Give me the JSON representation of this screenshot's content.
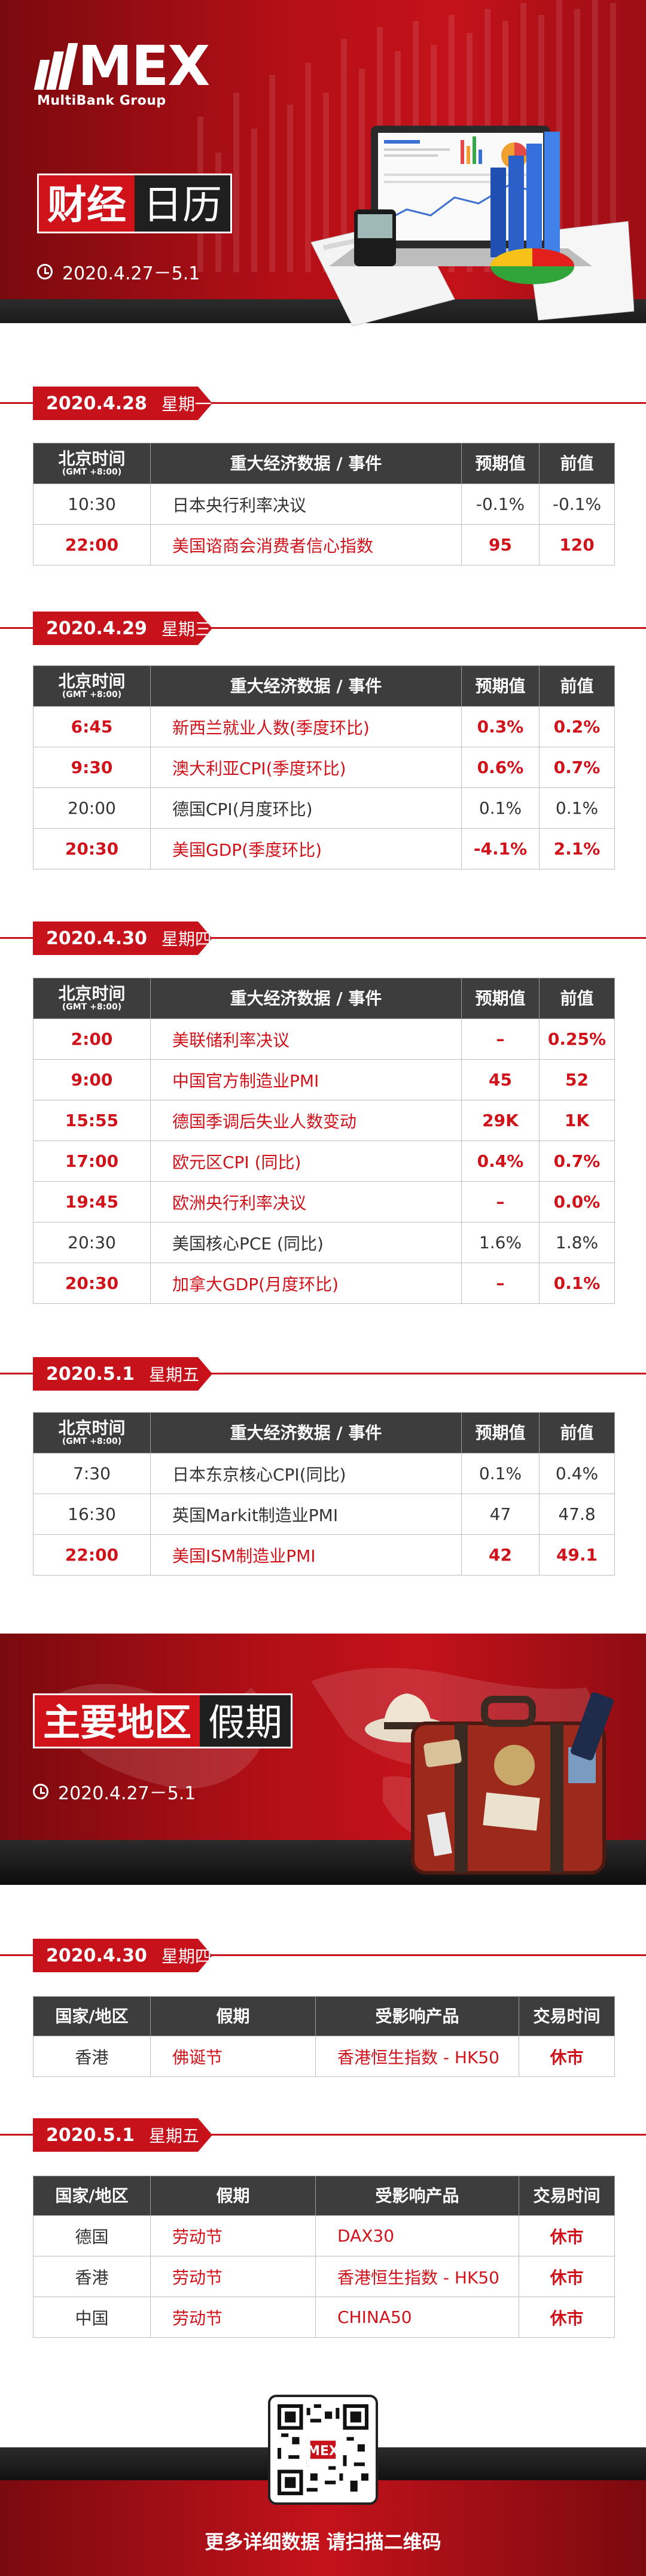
{
  "brand": {
    "logo_text": "MEX",
    "sub": "MultiBank Group"
  },
  "header": {
    "title_a": "财经",
    "title_b": "日历",
    "date_range": "2020.4.27－5.1"
  },
  "columns": {
    "time": "北京时间",
    "tz": "(GMT +8:00)",
    "event": "重大经济数据 / 事件",
    "forecast": "预期值",
    "previous": "前值"
  },
  "days": [
    {
      "date": "2020.4.28",
      "weekday": "星期一",
      "rows": [
        {
          "time": "10:30",
          "event": "日本央行利率决议",
          "forecast": "-0.1%",
          "previous": "-0.1%",
          "highlight": false
        },
        {
          "time": "22:00",
          "event": "美国谘商会消费者信心指数",
          "forecast": "95",
          "previous": "120",
          "highlight": true
        }
      ]
    },
    {
      "date": "2020.4.29",
      "weekday": "星期三",
      "rows": [
        {
          "time": "6:45",
          "event": "新西兰就业人数(季度环比)",
          "forecast": "0.3%",
          "previous": "0.2%",
          "highlight": true
        },
        {
          "time": "9:30",
          "event": "澳大利亚CPI(季度环比)",
          "forecast": "0.6%",
          "previous": "0.7%",
          "highlight": true
        },
        {
          "time": "20:00",
          "event": "德国CPI(月度环比)",
          "forecast": "0.1%",
          "previous": "0.1%",
          "highlight": false
        },
        {
          "time": "20:30",
          "event": "美国GDP(季度环比)",
          "forecast": "-4.1%",
          "previous": "2.1%",
          "highlight": true
        }
      ]
    },
    {
      "date": "2020.4.30",
      "weekday": "星期四",
      "rows": [
        {
          "time": "2:00",
          "event": "美联储利率决议",
          "forecast": "–",
          "previous": "0.25%",
          "highlight": true
        },
        {
          "time": "9:00",
          "event": "中国官方制造业PMI",
          "forecast": "45",
          "previous": "52",
          "highlight": true
        },
        {
          "time": "15:55",
          "event": "德国季调后失业人数变动",
          "forecast": "29K",
          "previous": "1K",
          "highlight": true
        },
        {
          "time": "17:00",
          "event": "欧元区CPI (同比)",
          "forecast": "0.4%",
          "previous": "0.7%",
          "highlight": true
        },
        {
          "time": "19:45",
          "event": "欧洲央行利率决议",
          "forecast": "–",
          "previous": "0.0%",
          "highlight": true
        },
        {
          "time": "20:30",
          "event": "美国核心PCE (同比)",
          "forecast": "1.6%",
          "previous": "1.8%",
          "highlight": false
        },
        {
          "time": "20:30",
          "event": "加拿大GDP(月度环比)",
          "forecast": "–",
          "previous": "0.1%",
          "highlight": true
        }
      ]
    },
    {
      "date": "2020.5.1",
      "weekday": "星期五",
      "rows": [
        {
          "time": "7:30",
          "event": "日本东京核心CPI(同比)",
          "forecast": "0.1%",
          "previous": "0.4%",
          "highlight": false
        },
        {
          "time": "16:30",
          "event": "英国Markit制造业PMI",
          "forecast": "47",
          "previous": "47.8",
          "highlight": false
        },
        {
          "time": "22:00",
          "event": "美国ISM制造业PMI",
          "forecast": "42",
          "previous": "49.1",
          "highlight": true
        }
      ]
    }
  ],
  "holiday_header": {
    "title_a": "主要地区",
    "title_b": "假期",
    "date_range": "2020.4.27－5.1"
  },
  "holiday_columns": {
    "region": "国家/地区",
    "holiday": "假期",
    "product": "受影响产品",
    "trading": "交易时间"
  },
  "holidays": [
    {
      "date": "2020.4.30",
      "weekday": "星期四",
      "rows": [
        {
          "region": "香港",
          "holiday": "佛诞节",
          "product": "香港恒生指数 - HK50",
          "trading": "休市"
        }
      ]
    },
    {
      "date": "2020.5.1",
      "weekday": "星期五",
      "rows": [
        {
          "region": "德国",
          "holiday": "劳动节",
          "product": "DAX30",
          "trading": "休市"
        },
        {
          "region": "香港",
          "holiday": "劳动节",
          "product": "香港恒生指数 - HK50",
          "trading": "休市"
        },
        {
          "region": "中国",
          "holiday": "劳动节",
          "product": "CHINA50",
          "trading": "休市"
        }
      ]
    }
  ],
  "footer": {
    "text": "更多详细数据 请扫描二维码"
  },
  "colors": {
    "brand_red": "#c8121b",
    "header_gray": "#3d3d3d"
  }
}
